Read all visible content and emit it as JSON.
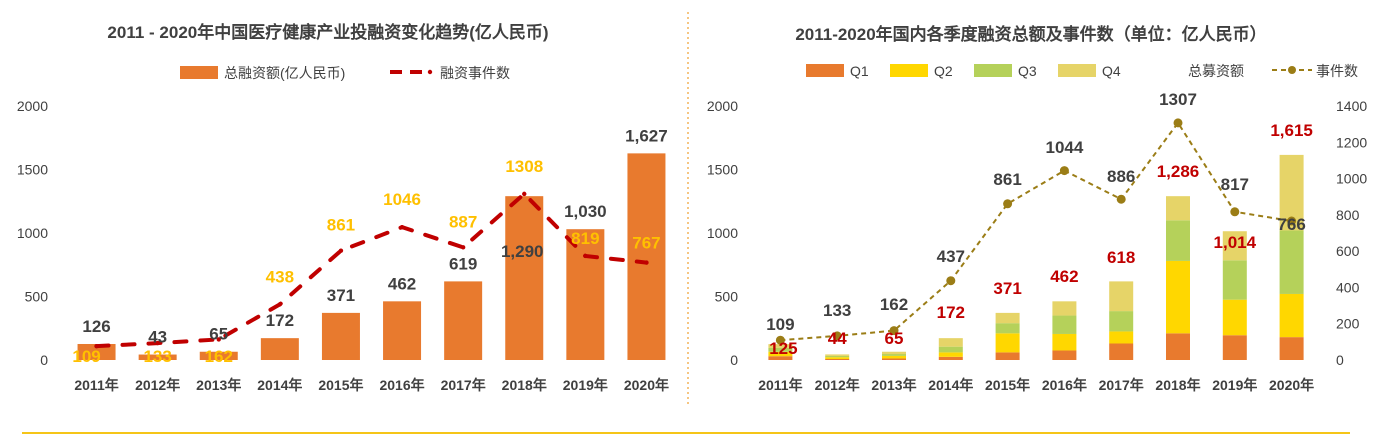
{
  "colors": {
    "orange": "#E87A2E",
    "dark_red": "#C00000",
    "gold": "#FFC000",
    "q2_yellow": "#FFD700",
    "q3_green": "#B5D15A",
    "q4_khaki": "#E6D468",
    "olive": "#9B7D16",
    "label_gray": "#404040",
    "divider": "#F0A030",
    "footer_line": "#F5C518"
  },
  "chart_data": [
    {
      "type": "bar",
      "title": "2011 - 2020年中国医疗健康产业投融资变化趋势(亿人民币)",
      "categories": [
        "2011年",
        "2012年",
        "2013年",
        "2014年",
        "2015年",
        "2016年",
        "2017年",
        "2018年",
        "2019年",
        "2020年"
      ],
      "ylim": [
        0,
        2000
      ],
      "yticks": [
        "0",
        "500",
        "1000",
        "1500",
        "2000"
      ],
      "legend": [
        "总融资额(亿人民币)",
        "融资事件数"
      ],
      "series": [
        {
          "name": "总融资额(亿人民币)",
          "type": "bar",
          "values": [
            126,
            43,
            65,
            172,
            371,
            462,
            619,
            1290,
            1030,
            1627
          ],
          "labels": [
            "126",
            "43",
            "65",
            "172",
            "371",
            "462",
            "619",
            "1,290",
            "1,030",
            "1,627"
          ]
        },
        {
          "name": "融资事件数",
          "type": "line",
          "values": [
            109,
            133,
            162,
            438,
            861,
            1046,
            887,
            1308,
            819,
            767
          ],
          "labels": [
            "109",
            "133",
            "162",
            "438",
            "861",
            "1046",
            "887",
            "1308",
            "819",
            "767"
          ]
        }
      ]
    },
    {
      "type": "bar",
      "title": "2011-2020年国内各季度融资总额及事件数（单位：亿人民币）",
      "categories": [
        "2011年",
        "2012年",
        "2013年",
        "2014年",
        "2015年",
        "2016年",
        "2017年",
        "2018年",
        "2019年",
        "2020年"
      ],
      "ylim": [
        0,
        2000
      ],
      "y2lim": [
        0,
        1400
      ],
      "yticks": [
        "0",
        "500",
        "1000",
        "1500",
        "2000"
      ],
      "y2ticks": [
        "0",
        "200",
        "400",
        "600",
        "800",
        "1000",
        "1200",
        "1400"
      ],
      "legend": [
        "Q1",
        "Q2",
        "Q3",
        "Q4",
        "总募资额",
        "事件数"
      ],
      "series": [
        {
          "name": "Q1",
          "type": "stacked-bar",
          "values": [
            30,
            8,
            12,
            25,
            60,
            75,
            130,
            210,
            195,
            180
          ]
        },
        {
          "name": "Q2",
          "type": "stacked-bar",
          "values": [
            35,
            14,
            20,
            35,
            150,
            130,
            95,
            570,
            280,
            340
          ]
        },
        {
          "name": "Q3",
          "type": "stacked-bar",
          "values": [
            30,
            10,
            15,
            45,
            80,
            145,
            160,
            320,
            310,
            500
          ]
        },
        {
          "name": "Q4",
          "type": "stacked-bar",
          "values": [
            30,
            12,
            18,
            67,
            81,
            112,
            234,
            190,
            229,
            595
          ]
        },
        {
          "name": "总募资额",
          "type": "label",
          "values": [
            125,
            44,
            65,
            172,
            371,
            462,
            618,
            1286,
            1014,
            1615
          ],
          "labels": [
            "125",
            "44",
            "65",
            "172",
            "371",
            "462",
            "618",
            "1,286",
            "1,014",
            "1,615"
          ]
        },
        {
          "name": "事件数",
          "type": "line",
          "axis": "right",
          "values": [
            109,
            133,
            162,
            437,
            861,
            1044,
            886,
            1307,
            817,
            766
          ],
          "labels": [
            "109",
            "133",
            "162",
            "437",
            "861",
            "1044",
            "886",
            "1307",
            "817",
            "766"
          ]
        }
      ]
    }
  ]
}
